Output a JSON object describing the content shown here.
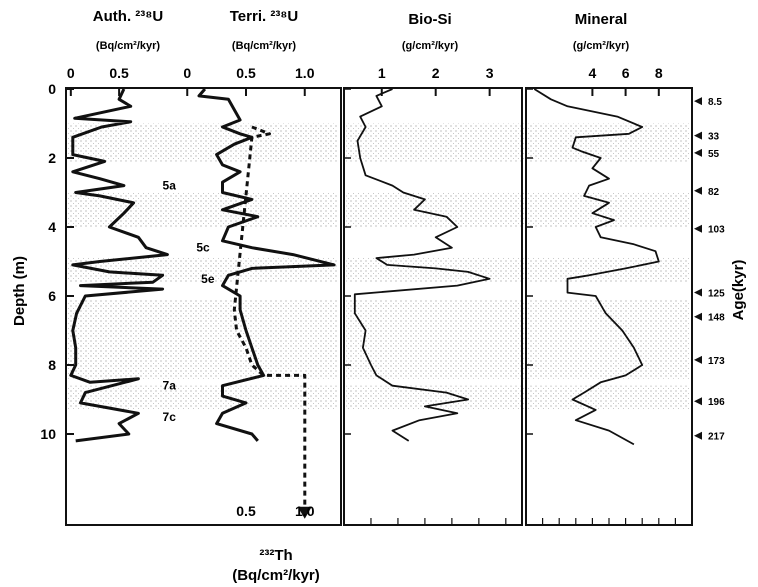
{
  "chart_data": {
    "type": "line",
    "y_axis": {
      "label": "Depth (m)",
      "ticks": [
        0,
        2,
        4,
        6,
        8,
        10
      ],
      "range": [
        0,
        12.5
      ],
      "inverted": true
    },
    "panels": [
      {
        "title": "Auth. ²³⁸U",
        "unit": "(Bq/cm²/kyr)",
        "xlim": [
          -0.05,
          1.4
        ],
        "tick_labels": [
          "0",
          "0.5"
        ],
        "tick_values": [
          0,
          0.5
        ],
        "series": [
          {
            "points": [
              [
                0.55,
                0
              ],
              [
                0.5,
                0.3
              ],
              [
                0.62,
                0.5
              ],
              [
                0.04,
                0.85
              ],
              [
                0.62,
                0.95
              ],
              [
                0.32,
                1.1
              ],
              [
                0.02,
                1.4
              ],
              [
                0.02,
                1.9
              ],
              [
                0.35,
                2.1
              ],
              [
                0.02,
                2.4
              ],
              [
                0.3,
                2.6
              ],
              [
                0.55,
                2.8
              ],
              [
                0.05,
                3.0
              ],
              [
                0.3,
                3.1
              ],
              [
                0.65,
                3.3
              ],
              [
                0.55,
                3.6
              ],
              [
                0.4,
                4.0
              ],
              [
                0.7,
                4.3
              ],
              [
                0.78,
                4.6
              ],
              [
                1.0,
                4.8
              ],
              [
                0.3,
                5.0
              ],
              [
                0.02,
                5.1
              ],
              [
                0.4,
                5.3
              ],
              [
                0.95,
                5.4
              ],
              [
                0.85,
                5.6
              ],
              [
                0.1,
                5.7
              ],
              [
                0.95,
                5.8
              ],
              [
                0.15,
                6.0
              ],
              [
                0.06,
                6.5
              ],
              [
                0.02,
                7.0
              ],
              [
                0.05,
                7.5
              ],
              [
                0.05,
                8.0
              ],
              [
                0.0,
                8.3
              ],
              [
                0.2,
                8.5
              ],
              [
                0.7,
                8.4
              ],
              [
                0.15,
                8.8
              ],
              [
                0.1,
                9.1
              ],
              [
                0.7,
                9.4
              ],
              [
                0.5,
                9.7
              ],
              [
                0.6,
                10.0
              ],
              [
                0.05,
                10.2
              ]
            ]
          }
        ],
        "annotations": [
          {
            "text": "5a",
            "x": 0.95,
            "y": 2.8
          },
          {
            "text": "5c",
            "x": 1.3,
            "y": 4.6
          },
          {
            "text": "5e",
            "x": 1.35,
            "y": 5.5
          },
          {
            "text": "7a",
            "x": 0.95,
            "y": 8.6
          },
          {
            "text": "7c",
            "x": 0.95,
            "y": 9.5
          }
        ]
      },
      {
        "title": "Terri. ²³⁸U",
        "unit": "(Bq/cm²/kyr)",
        "xlim": [
          -0.3,
          1.3
        ],
        "tick_labels": [
          "0",
          "0.5",
          "1.0"
        ],
        "tick_values": [
          0,
          0.5,
          1.0
        ],
        "bottom_axis": {
          "label": "²³²Th",
          "unit": "(Bq/cm²/kyr)",
          "tick_labels": [
            "0.5",
            "1.0"
          ],
          "tick_values": [
            0.5,
            1.0
          ]
        },
        "series": [
          {
            "name": "terrigenous",
            "style": "solid",
            "points": [
              [
                0.15,
                0
              ],
              [
                0.1,
                0.2
              ],
              [
                0.35,
                0.3
              ],
              [
                0.4,
                0.6
              ],
              [
                0.45,
                0.9
              ],
              [
                0.3,
                1.1
              ],
              [
                0.45,
                1.3
              ],
              [
                0.55,
                1.4
              ],
              [
                0.4,
                1.6
              ],
              [
                0.25,
                1.9
              ],
              [
                0.3,
                2.2
              ],
              [
                0.45,
                2.4
              ],
              [
                0.3,
                2.7
              ],
              [
                0.3,
                3.0
              ],
              [
                0.55,
                3.2
              ],
              [
                0.3,
                3.5
              ],
              [
                0.6,
                3.7
              ],
              [
                0.35,
                4.0
              ],
              [
                0.3,
                4.4
              ],
              [
                0.55,
                4.6
              ],
              [
                0.9,
                4.8
              ],
              [
                1.25,
                5.1
              ],
              [
                0.55,
                5.2
              ],
              [
                0.35,
                5.4
              ],
              [
                0.3,
                5.7
              ],
              [
                0.45,
                6.0
              ],
              [
                0.45,
                6.4
              ],
              [
                0.5,
                7.0
              ],
              [
                0.55,
                7.5
              ],
              [
                0.6,
                8.0
              ],
              [
                0.65,
                8.3
              ],
              [
                0.3,
                8.6
              ],
              [
                0.3,
                8.9
              ],
              [
                0.5,
                9.1
              ],
              [
                0.3,
                9.4
              ],
              [
                0.25,
                9.7
              ],
              [
                0.55,
                10.0
              ],
              [
                0.6,
                10.2
              ]
            ]
          },
          {
            "name": "232Th",
            "style": "dashed",
            "points": [
              [
                0.55,
                1.1
              ],
              [
                0.7,
                1.3
              ],
              [
                0.55,
                1.4
              ],
              [
                0.4,
                6.4
              ],
              [
                0.42,
                7.0
              ],
              [
                0.5,
                7.5
              ],
              [
                0.55,
                8.0
              ],
              [
                0.65,
                8.3
              ],
              [
                0.9,
                8.3
              ],
              [
                1.0,
                8.3
              ],
              [
                1.0,
                12.4
              ]
            ]
          }
        ]
      },
      {
        "title": "Bio-Si",
        "unit": "(g/cm²/kyr)",
        "xlim": [
          0.3,
          3.6
        ],
        "tick_labels": [
          "1",
          "2",
          "3"
        ],
        "tick_values": [
          1,
          2,
          3
        ],
        "series": [
          {
            "points": [
              [
                1.2,
                0
              ],
              [
                0.9,
                0.2
              ],
              [
                1.0,
                0.5
              ],
              [
                0.6,
                0.8
              ],
              [
                0.7,
                1.1
              ],
              [
                0.55,
                1.5
              ],
              [
                0.6,
                2.0
              ],
              [
                0.7,
                2.5
              ],
              [
                1.2,
                2.8
              ],
              [
                1.4,
                3.0
              ],
              [
                1.8,
                3.2
              ],
              [
                1.6,
                3.5
              ],
              [
                2.2,
                3.7
              ],
              [
                2.4,
                4.0
              ],
              [
                2.0,
                4.3
              ],
              [
                2.3,
                4.6
              ],
              [
                1.6,
                4.8
              ],
              [
                0.9,
                4.9
              ],
              [
                1.1,
                5.1
              ],
              [
                2.0,
                5.2
              ],
              [
                2.6,
                5.3
              ],
              [
                3.0,
                5.5
              ],
              [
                2.4,
                5.7
              ],
              [
                0.5,
                5.95
              ],
              [
                0.5,
                6.5
              ],
              [
                0.7,
                7.0
              ],
              [
                0.65,
                7.5
              ],
              [
                0.8,
                8.0
              ],
              [
                0.9,
                8.3
              ],
              [
                1.2,
                8.6
              ],
              [
                2.2,
                8.8
              ],
              [
                2.6,
                9.0
              ],
              [
                1.8,
                9.2
              ],
              [
                2.4,
                9.4
              ],
              [
                1.7,
                9.6
              ],
              [
                1.2,
                9.9
              ],
              [
                1.5,
                10.2
              ]
            ]
          }
        ]
      },
      {
        "title": "Mineral",
        "unit": "(g/cm²/kyr)",
        "xlim": [
          0,
          10
        ],
        "tick_labels": [
          "4",
          "6",
          "8"
        ],
        "tick_values": [
          4,
          6,
          8
        ],
        "series": [
          {
            "points": [
              [
                0.5,
                0
              ],
              [
                1.5,
                0.3
              ],
              [
                2.5,
                0.5
              ],
              [
                5.5,
                0.8
              ],
              [
                7.0,
                1.1
              ],
              [
                6.2,
                1.3
              ],
              [
                3.0,
                1.4
              ],
              [
                2.8,
                1.7
              ],
              [
                3.3,
                1.8
              ],
              [
                4.5,
                2.0
              ],
              [
                4.0,
                2.3
              ],
              [
                5.0,
                2.6
              ],
              [
                3.8,
                2.8
              ],
              [
                3.5,
                3.1
              ],
              [
                5.0,
                3.3
              ],
              [
                4.0,
                3.6
              ],
              [
                5.3,
                3.8
              ],
              [
                4.2,
                4.0
              ],
              [
                4.5,
                4.3
              ],
              [
                6.5,
                4.5
              ],
              [
                7.8,
                4.7
              ],
              [
                8.0,
                5.0
              ],
              [
                6.0,
                5.2
              ],
              [
                3.8,
                5.4
              ],
              [
                2.5,
                5.5
              ],
              [
                2.5,
                5.9
              ],
              [
                4.2,
                6.0
              ],
              [
                4.8,
                6.5
              ],
              [
                5.8,
                7.0
              ],
              [
                6.5,
                7.5
              ],
              [
                7.0,
                8.0
              ],
              [
                6.0,
                8.3
              ],
              [
                4.5,
                8.5
              ],
              [
                3.5,
                8.8
              ],
              [
                2.8,
                9.0
              ],
              [
                4.2,
                9.3
              ],
              [
                3.0,
                9.6
              ],
              [
                5.0,
                9.9
              ],
              [
                6.5,
                10.3
              ]
            ]
          }
        ]
      }
    ],
    "age_axis": {
      "label": "Age(kyr)",
      "markers": [
        {
          "age": "8.5",
          "depth": 0.35
        },
        {
          "age": "33",
          "depth": 1.35
        },
        {
          "age": "55",
          "depth": 1.85
        },
        {
          "age": "82",
          "depth": 2.95
        },
        {
          "age": "103",
          "depth": 4.05
        },
        {
          "age": "125",
          "depth": 5.9
        },
        {
          "age": "148",
          "depth": 6.6
        },
        {
          "age": "173",
          "depth": 7.85
        },
        {
          "age": "196",
          "depth": 9.05
        },
        {
          "age": "217",
          "depth": 10.05
        }
      ]
    },
    "shaded_depth_bands": [
      [
        1.0,
        2.1
      ],
      [
        3.0,
        4.0
      ],
      [
        4.9,
        5.6
      ],
      [
        6.1,
        8.4
      ],
      [
        8.6,
        9.3
      ]
    ],
    "grid": false,
    "legend": "none"
  }
}
